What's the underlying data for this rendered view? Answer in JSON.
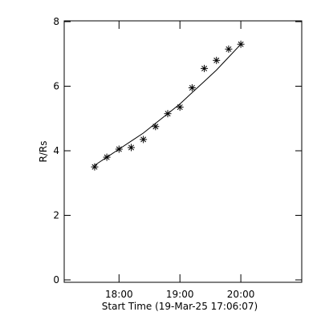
{
  "chart_data": {
    "type": "scatter",
    "xlabel": "Start Time (19-Mar-25 17:06:07)",
    "ylabel": "R/Rs",
    "x": [
      17.6,
      17.8,
      18.0,
      18.2,
      18.4,
      18.6,
      18.8,
      19.0,
      19.2,
      19.4,
      19.6,
      19.8,
      20.0
    ],
    "series": [
      {
        "color": "#000000",
        "marker": "asterisk",
        "values": [
          3.5,
          3.8,
          4.05,
          4.1,
          4.35,
          4.75,
          5.15,
          5.35,
          5.95,
          6.55,
          6.8,
          7.15,
          7.3
        ]
      },
      {
        "color": "#000000",
        "marker": "line",
        "values": [
          3.55,
          3.8,
          4.05,
          4.3,
          4.55,
          4.85,
          5.15,
          5.45,
          5.8,
          6.15,
          6.5,
          6.9,
          7.3
        ]
      }
    ],
    "xlim": [
      17.1,
      21.0
    ],
    "xticks": [
      {
        "value": 18,
        "label": "18:00"
      },
      {
        "value": 19,
        "label": "19:00"
      },
      {
        "value": 20,
        "label": "20:00"
      }
    ],
    "ylim": [
      0,
      8
    ],
    "yticks": [
      0,
      2,
      4,
      6,
      8
    ]
  }
}
